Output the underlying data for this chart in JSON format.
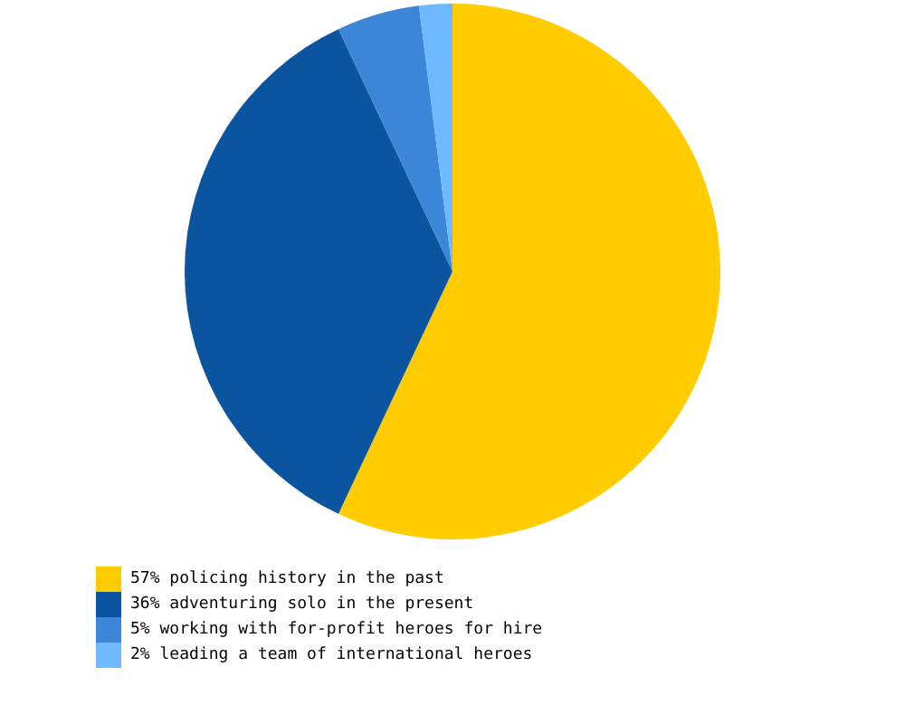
{
  "chart_data": {
    "type": "pie",
    "categories": [
      "57% policing history in the past",
      "36% adventuring solo in the present",
      "5% working with for-profit heroes for hire",
      "2% leading a team of international heroes"
    ],
    "values": [
      57,
      36,
      5,
      2
    ],
    "colors": [
      "#ffcc00",
      "#0b55a0",
      "#3b86d6",
      "#6fb8ff"
    ],
    "legend": "bottom left"
  }
}
